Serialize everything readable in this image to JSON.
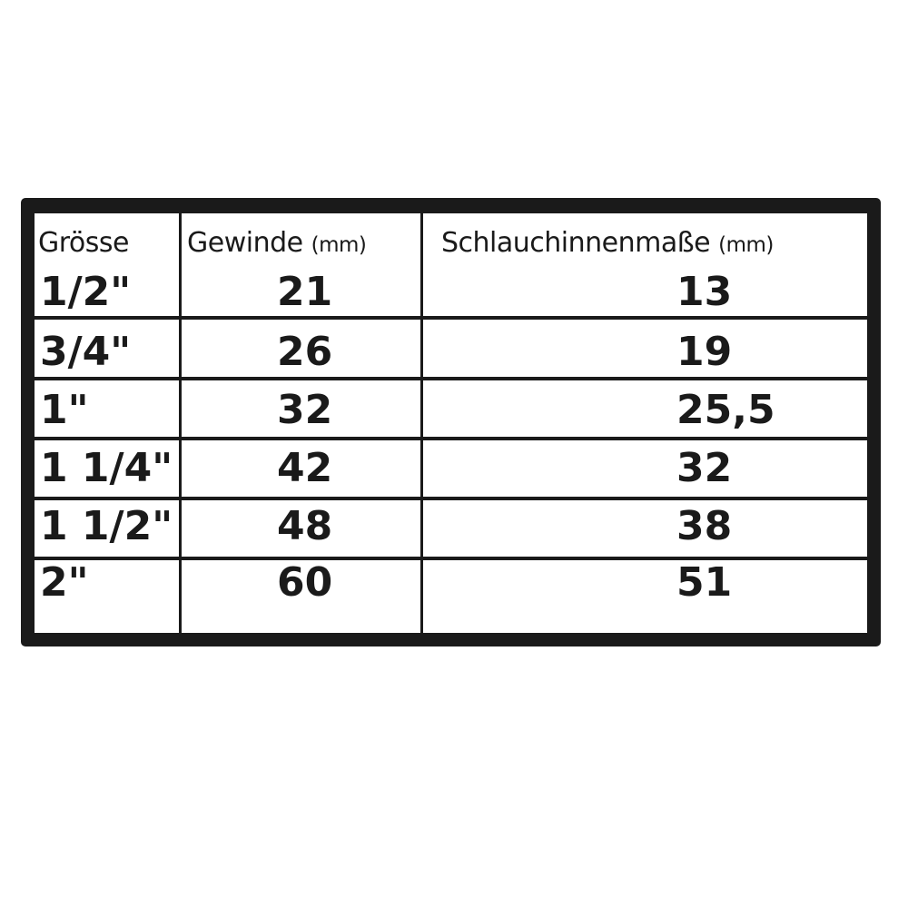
{
  "table": {
    "headers": [
      {
        "label": "Grösse",
        "unit": ""
      },
      {
        "label": "Gewinde",
        "unit": "(mm)"
      },
      {
        "label": "Schlauchinnenmaße",
        "unit": "(mm)"
      }
    ],
    "rows": [
      {
        "size": "1/2\"",
        "thread": "21",
        "hose_inner": "13"
      },
      {
        "size": "3/4\"",
        "thread": "26",
        "hose_inner": "19"
      },
      {
        "size": "1\"",
        "thread": "32",
        "hose_inner": "25,5"
      },
      {
        "size": "1 1/4\"",
        "thread": "42",
        "hose_inner": "32"
      },
      {
        "size": "1 1/2\"",
        "thread": "48",
        "hose_inner": "38"
      },
      {
        "size": "2\"",
        "thread": "60",
        "hose_inner": "51"
      }
    ]
  }
}
